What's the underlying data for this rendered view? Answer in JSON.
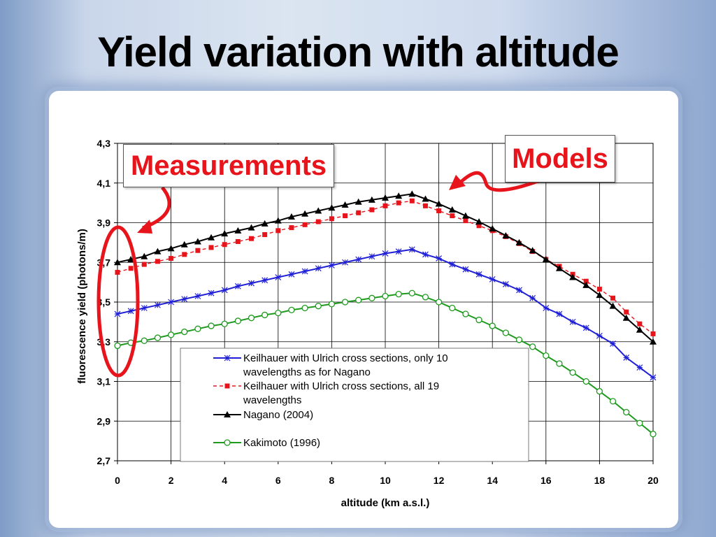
{
  "slide": {
    "title": "Yield variation with altitude"
  },
  "annotations": {
    "measurements_label": "Measurements",
    "models_label": "Models",
    "accent_color": "#e8141b"
  },
  "chart_data": {
    "type": "line",
    "xlabel": "altitude (km a.s.l.)",
    "ylabel": "fluorescence yield (photons/m)",
    "xlim": [
      0,
      20
    ],
    "ylim": [
      2.7,
      4.3
    ],
    "x_ticks": [
      "0",
      "2",
      "4",
      "6",
      "8",
      "10",
      "12",
      "14",
      "16",
      "18",
      "20"
    ],
    "y_ticks": [
      "2,7",
      "2,9",
      "3,1",
      "3,3",
      "3,5",
      "3,7",
      "3,9",
      "4,1",
      "4,3"
    ],
    "grid": true,
    "legend_position": "lower-center",
    "x": [
      0,
      0.5,
      1,
      1.5,
      2,
      2.5,
      3,
      3.5,
      4,
      4.5,
      5,
      5.5,
      6,
      6.5,
      7,
      7.5,
      8,
      8.5,
      9,
      9.5,
      10,
      10.5,
      11,
      11.5,
      12,
      12.5,
      13,
      13.5,
      14,
      14.5,
      15,
      15.5,
      16,
      16.5,
      17,
      17.5,
      18,
      18.5,
      19,
      19.5,
      20
    ],
    "series": [
      {
        "name": "Keilhauer with Ulrich cross sections, only 10 wavelengths as for Nagano",
        "color": "#1f1fd6",
        "marker": "asterisk",
        "dash": "solid",
        "values": [
          3.44,
          3.455,
          3.47,
          3.485,
          3.5,
          3.515,
          3.53,
          3.545,
          3.56,
          3.58,
          3.595,
          3.61,
          3.625,
          3.64,
          3.655,
          3.67,
          3.685,
          3.7,
          3.715,
          3.73,
          3.745,
          3.755,
          3.765,
          3.74,
          3.72,
          3.69,
          3.665,
          3.64,
          3.615,
          3.59,
          3.56,
          3.52,
          3.47,
          3.44,
          3.4,
          3.37,
          3.33,
          3.29,
          3.22,
          3.17,
          3.12
        ]
      },
      {
        "name": "Keilhauer with Ulrich cross sections, all 19 wavelengths",
        "color": "#e8141b",
        "marker": "square",
        "dash": "dashed",
        "values": [
          3.65,
          3.67,
          3.69,
          3.705,
          3.72,
          3.74,
          3.76,
          3.775,
          3.79,
          3.805,
          3.82,
          3.84,
          3.86,
          3.875,
          3.89,
          3.905,
          3.92,
          3.935,
          3.95,
          3.965,
          3.985,
          4.0,
          4.01,
          3.985,
          3.96,
          3.935,
          3.91,
          3.885,
          3.86,
          3.83,
          3.795,
          3.755,
          3.715,
          3.68,
          3.64,
          3.605,
          3.565,
          3.52,
          3.45,
          3.39,
          3.34
        ]
      },
      {
        "name": "Nagano (2004)",
        "color": "#000000",
        "marker": "triangle",
        "dash": "solid",
        "values": [
          3.7,
          3.715,
          3.73,
          3.755,
          3.77,
          3.79,
          3.805,
          3.825,
          3.845,
          3.86,
          3.875,
          3.895,
          3.91,
          3.93,
          3.945,
          3.96,
          3.975,
          3.99,
          4.005,
          4.015,
          4.025,
          4.035,
          4.045,
          4.02,
          3.995,
          3.965,
          3.935,
          3.905,
          3.87,
          3.835,
          3.8,
          3.76,
          3.715,
          3.67,
          3.625,
          3.585,
          3.535,
          3.48,
          3.42,
          3.36,
          3.3
        ]
      },
      {
        "name": "Kakimoto (1996)",
        "color": "#1e9a1e",
        "marker": "circle",
        "dash": "solid",
        "values": [
          3.28,
          3.295,
          3.305,
          3.32,
          3.335,
          3.35,
          3.365,
          3.38,
          3.39,
          3.405,
          3.42,
          3.435,
          3.445,
          3.46,
          3.47,
          3.48,
          3.49,
          3.5,
          3.51,
          3.52,
          3.53,
          3.54,
          3.545,
          3.525,
          3.5,
          3.47,
          3.44,
          3.41,
          3.38,
          3.345,
          3.31,
          3.275,
          3.23,
          3.19,
          3.145,
          3.1,
          3.05,
          3.0,
          2.945,
          2.89,
          2.835
        ]
      }
    ]
  }
}
